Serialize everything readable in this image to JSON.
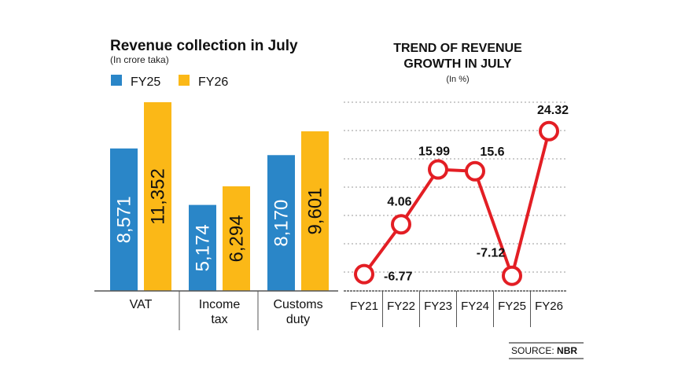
{
  "chart_data": [
    {
      "type": "bar",
      "title": "Revenue collection in July",
      "subtitle": "(In crore taka)",
      "categories": [
        "VAT",
        "Income tax",
        "Customs duty"
      ],
      "category_lines": [
        [
          "VAT"
        ],
        [
          "Income",
          "tax"
        ],
        [
          "Customs",
          "duty"
        ]
      ],
      "series": [
        {
          "name": "FY25",
          "color": "#2a86c8",
          "values": [
            8571,
            5174,
            8170
          ],
          "labels": [
            "8,571",
            "5,174",
            "8,170"
          ]
        },
        {
          "name": "FY26",
          "color": "#fbb817",
          "values": [
            11352,
            6294,
            9601
          ],
          "labels": [
            "11,352",
            "6,294",
            "9,601"
          ]
        }
      ],
      "legend": "top-left",
      "grid": false
    },
    {
      "type": "line",
      "title_lines": [
        "TREND OF REVENUE",
        "GROWTH IN JULY"
      ],
      "subtitle": "(In %)",
      "categories": [
        "FY21",
        "FY22",
        "FY23",
        "FY24",
        "FY25",
        "FY26"
      ],
      "values": [
        -6.77,
        4.06,
        15.99,
        15.6,
        -7.12,
        24.32
      ],
      "labels": [
        "-6.77",
        "4.06",
        "15.99",
        "15.6",
        "-7.12",
        "24.32"
      ],
      "color": "#e31e24",
      "grid": true
    }
  ],
  "source": {
    "prefix": "SOURCE:",
    "name": "NBR"
  }
}
